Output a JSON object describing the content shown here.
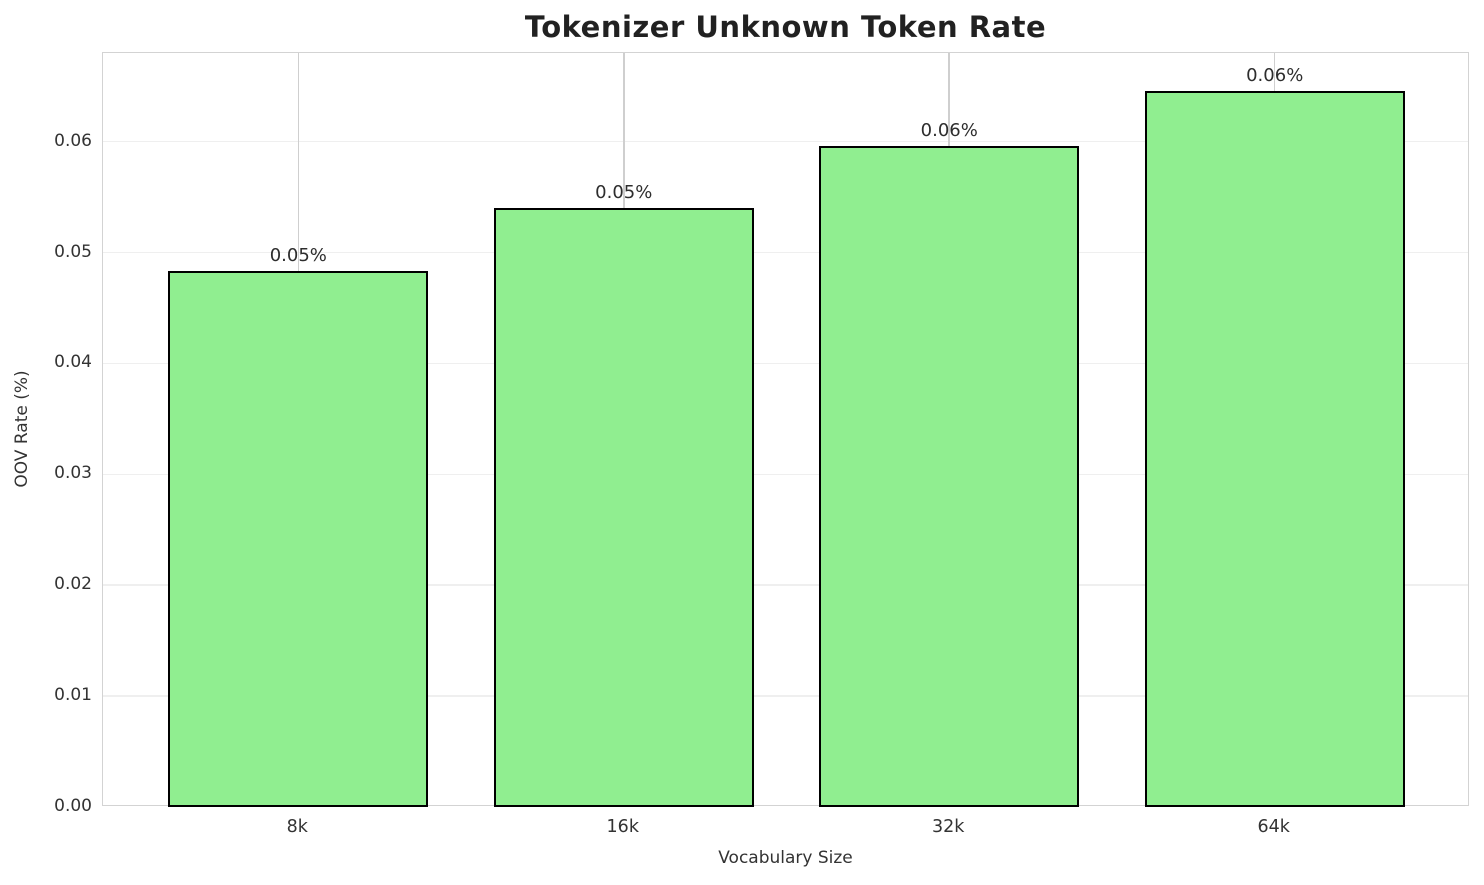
{
  "chart_data": {
    "type": "bar",
    "title": "Tokenizer Unknown Token Rate",
    "xlabel": "Vocabulary Size",
    "ylabel": "OOV Rate (%)",
    "categories": [
      "8k",
      "16k",
      "32k",
      "64k"
    ],
    "values": [
      0.0483,
      0.054,
      0.0596,
      0.0646
    ],
    "bar_labels": [
      "0.05%",
      "0.05%",
      "0.06%",
      "0.06%"
    ],
    "ylim": [
      0,
      0.068
    ],
    "yticks": [
      0.0,
      0.01,
      0.02,
      0.03,
      0.04,
      0.05,
      0.06
    ],
    "ytick_labels": [
      "0.00",
      "0.01",
      "0.02",
      "0.03",
      "0.04",
      "0.05",
      "0.06"
    ],
    "grid": true,
    "legend_position": "none",
    "colors": {
      "bar_fill": "#90EE90",
      "bar_edge": "#000000",
      "grid_horizontal": "#efefef",
      "grid_vertical": "#cfcfcf",
      "spine": "#d3d3d3",
      "text": "#333333",
      "title": "#212121",
      "background": "#ffffff"
    }
  }
}
